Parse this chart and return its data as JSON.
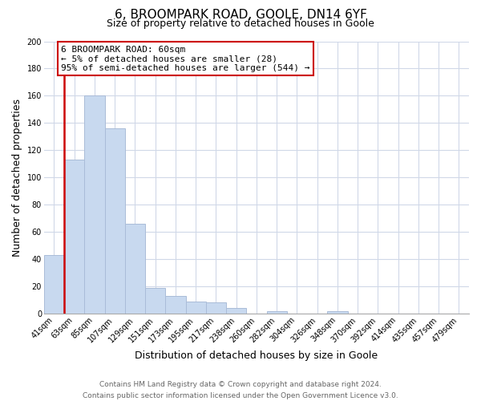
{
  "title": "6, BROOMPARK ROAD, GOOLE, DN14 6YF",
  "subtitle": "Size of property relative to detached houses in Goole",
  "xlabel": "Distribution of detached houses by size in Goole",
  "ylabel": "Number of detached properties",
  "categories": [
    "41sqm",
    "63sqm",
    "85sqm",
    "107sqm",
    "129sqm",
    "151sqm",
    "173sqm",
    "195sqm",
    "217sqm",
    "238sqm",
    "260sqm",
    "282sqm",
    "304sqm",
    "326sqm",
    "348sqm",
    "370sqm",
    "392sqm",
    "414sqm",
    "435sqm",
    "457sqm",
    "479sqm"
  ],
  "values": [
    43,
    113,
    160,
    136,
    66,
    19,
    13,
    9,
    8,
    4,
    0,
    2,
    0,
    0,
    2,
    0,
    0,
    0,
    0,
    0,
    0
  ],
  "bar_color": "#c8d9ef",
  "bar_edge_color": "#aabcd8",
  "vline_color": "#cc0000",
  "annotation_text": "6 BROOMPARK ROAD: 60sqm\n← 5% of detached houses are smaller (28)\n95% of semi-detached houses are larger (544) →",
  "annotation_box_edge_color": "#cc0000",
  "ylim": [
    0,
    200
  ],
  "yticks": [
    0,
    20,
    40,
    60,
    80,
    100,
    120,
    140,
    160,
    180,
    200
  ],
  "footer_line1": "Contains HM Land Registry data © Crown copyright and database right 2024.",
  "footer_line2": "Contains public sector information licensed under the Open Government Licence v3.0.",
  "title_fontsize": 11,
  "subtitle_fontsize": 9,
  "axis_label_fontsize": 9,
  "tick_fontsize": 7,
  "annotation_fontsize": 8,
  "footer_fontsize": 6.5,
  "background_color": "#ffffff",
  "grid_color": "#d0d8e8"
}
